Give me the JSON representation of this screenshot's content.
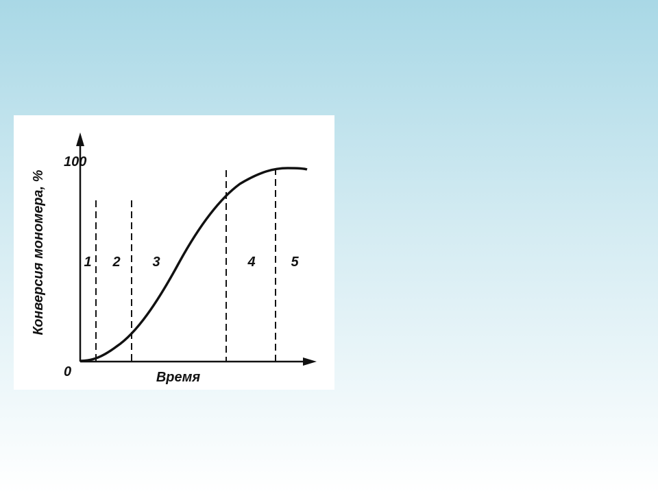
{
  "figure": {
    "y_axis_label": "Конверсия мономера, %",
    "y_max_label": "100",
    "origin_label": "0",
    "x_axis_label": "Время",
    "regions": [
      "1",
      "2",
      "3",
      "4",
      "5"
    ]
  }
}
